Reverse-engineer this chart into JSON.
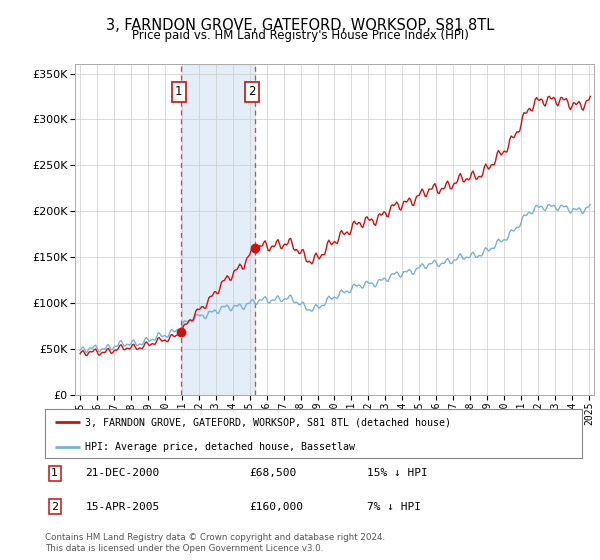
{
  "title": "3, FARNDON GROVE, GATEFORD, WORKSOP, S81 8TL",
  "subtitle": "Price paid vs. HM Land Registry's House Price Index (HPI)",
  "legend_line1": "3, FARNDON GROVE, GATEFORD, WORKSOP, S81 8TL (detached house)",
  "legend_line2": "HPI: Average price, detached house, Bassetlaw",
  "sale1_date": "21-DEC-2000",
  "sale1_price": "£68,500",
  "sale1_info": "15% ↓ HPI",
  "sale2_date": "15-APR-2005",
  "sale2_price": "£160,000",
  "sale2_info": "7% ↓ HPI",
  "footer": "Contains HM Land Registry data © Crown copyright and database right 2024.\nThis data is licensed under the Open Government Licence v3.0.",
  "hpi_color": "#7ab0d8",
  "price_color": "#cc1111",
  "sale1_x": 2000.97,
  "sale1_y": 68500,
  "sale2_x": 2005.29,
  "sale2_y": 160000,
  "ylim": [
    0,
    360000
  ],
  "xlim_start": 1994.7,
  "xlim_end": 2025.3,
  "shade_x1": 2000.97,
  "shade_x2": 2005.29
}
